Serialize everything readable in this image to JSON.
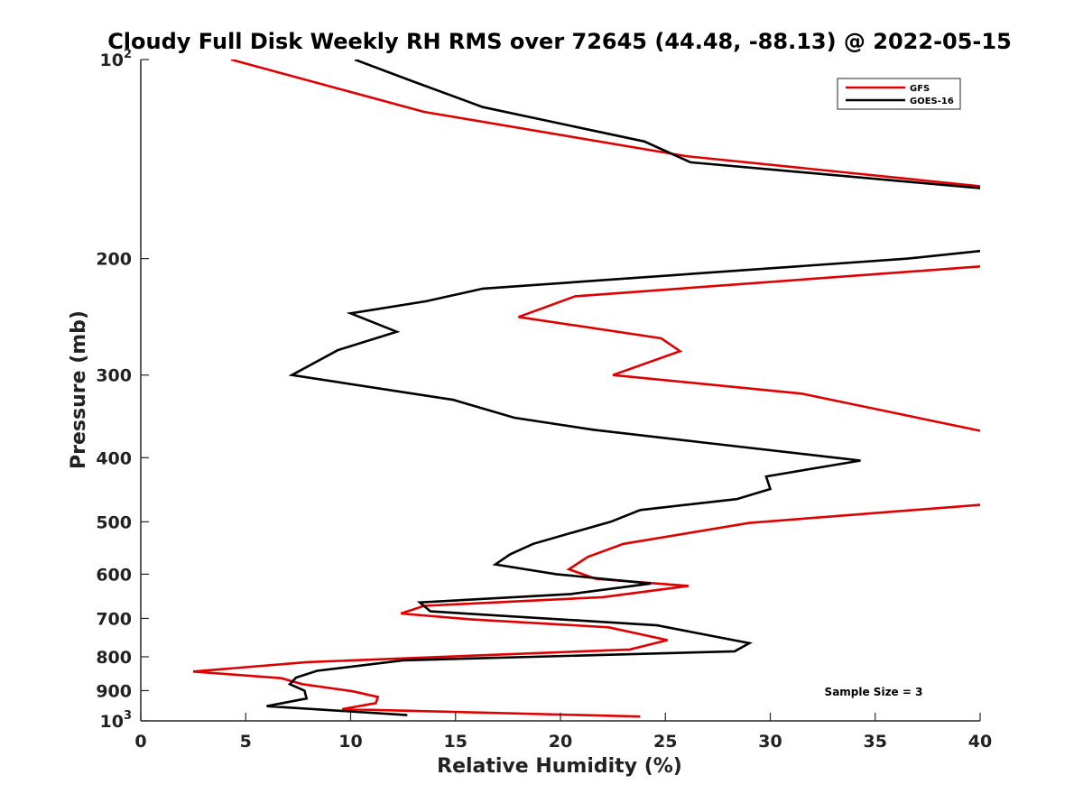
{
  "chart_data": {
    "type": "line",
    "title": "Cloudy Full Disk Weekly RH RMS over 72645 (44.48, -88.13) @ 2022-05-15",
    "xlabel": "Relative Humidity (%)",
    "ylabel": "Pressure (mb)",
    "xlim": [
      0,
      40
    ],
    "ylim": [
      100,
      1000
    ],
    "yscale": "log",
    "y_reversed": true,
    "grid": false,
    "legend_position": "top-right",
    "xticks": [
      "0",
      "5",
      "10",
      "15",
      "20",
      "25",
      "30",
      "35",
      "40"
    ],
    "yticks": [
      {
        "value": 100,
        "base": "10",
        "exp": "2"
      },
      {
        "value": 200,
        "label": "200"
      },
      {
        "value": 300,
        "label": "300"
      },
      {
        "value": 400,
        "label": "400"
      },
      {
        "value": 500,
        "label": "500"
      },
      {
        "value": 600,
        "label": "600"
      },
      {
        "value": 700,
        "label": "700"
      },
      {
        "value": 800,
        "label": "800"
      },
      {
        "value": 900,
        "label": "900"
      },
      {
        "value": 1000,
        "base": "10",
        "exp": "3"
      }
    ],
    "annotation": "Sample Size = 3",
    "series": [
      {
        "name": "GFS",
        "color": "#e00000",
        "points": [
          [
            4.3,
            100
          ],
          [
            13.5,
            120
          ],
          [
            26.0,
            140
          ],
          [
            40.5,
            156
          ],
          [
            40.5,
            205
          ],
          [
            20.7,
            228
          ],
          [
            18.0,
            245
          ],
          [
            24.8,
            264
          ],
          [
            25.7,
            276
          ],
          [
            22.5,
            300
          ],
          [
            31.5,
            320
          ],
          [
            40.5,
            367
          ],
          [
            40.5,
            470
          ],
          [
            29.0,
            502
          ],
          [
            23.0,
            540
          ],
          [
            21.3,
            565
          ],
          [
            20.4,
            590
          ],
          [
            21.7,
            610
          ],
          [
            26.1,
            625
          ],
          [
            22.0,
            650
          ],
          [
            13.5,
            670
          ],
          [
            12.4,
            688
          ],
          [
            15.7,
            702
          ],
          [
            22.3,
            722
          ],
          [
            25.1,
            755
          ],
          [
            23.3,
            780
          ],
          [
            7.9,
            815
          ],
          [
            2.5,
            842
          ],
          [
            6.7,
            862
          ],
          [
            7.7,
            880
          ],
          [
            10.1,
            902
          ],
          [
            11.3,
            920
          ],
          [
            11.2,
            940
          ],
          [
            9.6,
            960
          ],
          [
            23.8,
            985
          ]
        ]
      },
      {
        "name": "GOES-16",
        "color": "#000000",
        "points": [
          [
            10.2,
            100
          ],
          [
            13.0,
            108
          ],
          [
            16.3,
            118
          ],
          [
            24.0,
            133
          ],
          [
            26.2,
            143
          ],
          [
            40.5,
            157
          ],
          [
            40.5,
            194
          ],
          [
            36.5,
            200
          ],
          [
            16.3,
            222
          ],
          [
            13.6,
            232
          ],
          [
            10.0,
            242
          ],
          [
            12.2,
            258
          ],
          [
            9.4,
            275
          ],
          [
            7.2,
            300
          ],
          [
            14.9,
            327
          ],
          [
            17.8,
            348
          ],
          [
            21.6,
            363
          ],
          [
            27.0,
            380
          ],
          [
            34.3,
            404
          ],
          [
            29.8,
            427
          ],
          [
            30.0,
            446
          ],
          [
            28.4,
            462
          ],
          [
            23.8,
            480
          ],
          [
            22.4,
            500
          ],
          [
            20.5,
            520
          ],
          [
            18.7,
            540
          ],
          [
            17.6,
            560
          ],
          [
            16.9,
            580
          ],
          [
            19.8,
            600
          ],
          [
            24.3,
            620
          ],
          [
            20.5,
            643
          ],
          [
            13.3,
            662
          ],
          [
            13.8,
            683
          ],
          [
            24.6,
            717
          ],
          [
            29.0,
            763
          ],
          [
            28.3,
            785
          ],
          [
            12.5,
            810
          ],
          [
            8.4,
            840
          ],
          [
            7.4,
            860
          ],
          [
            7.1,
            880
          ],
          [
            7.8,
            900
          ],
          [
            7.9,
            925
          ],
          [
            6.0,
            950
          ],
          [
            12.7,
            980
          ]
        ]
      }
    ]
  }
}
